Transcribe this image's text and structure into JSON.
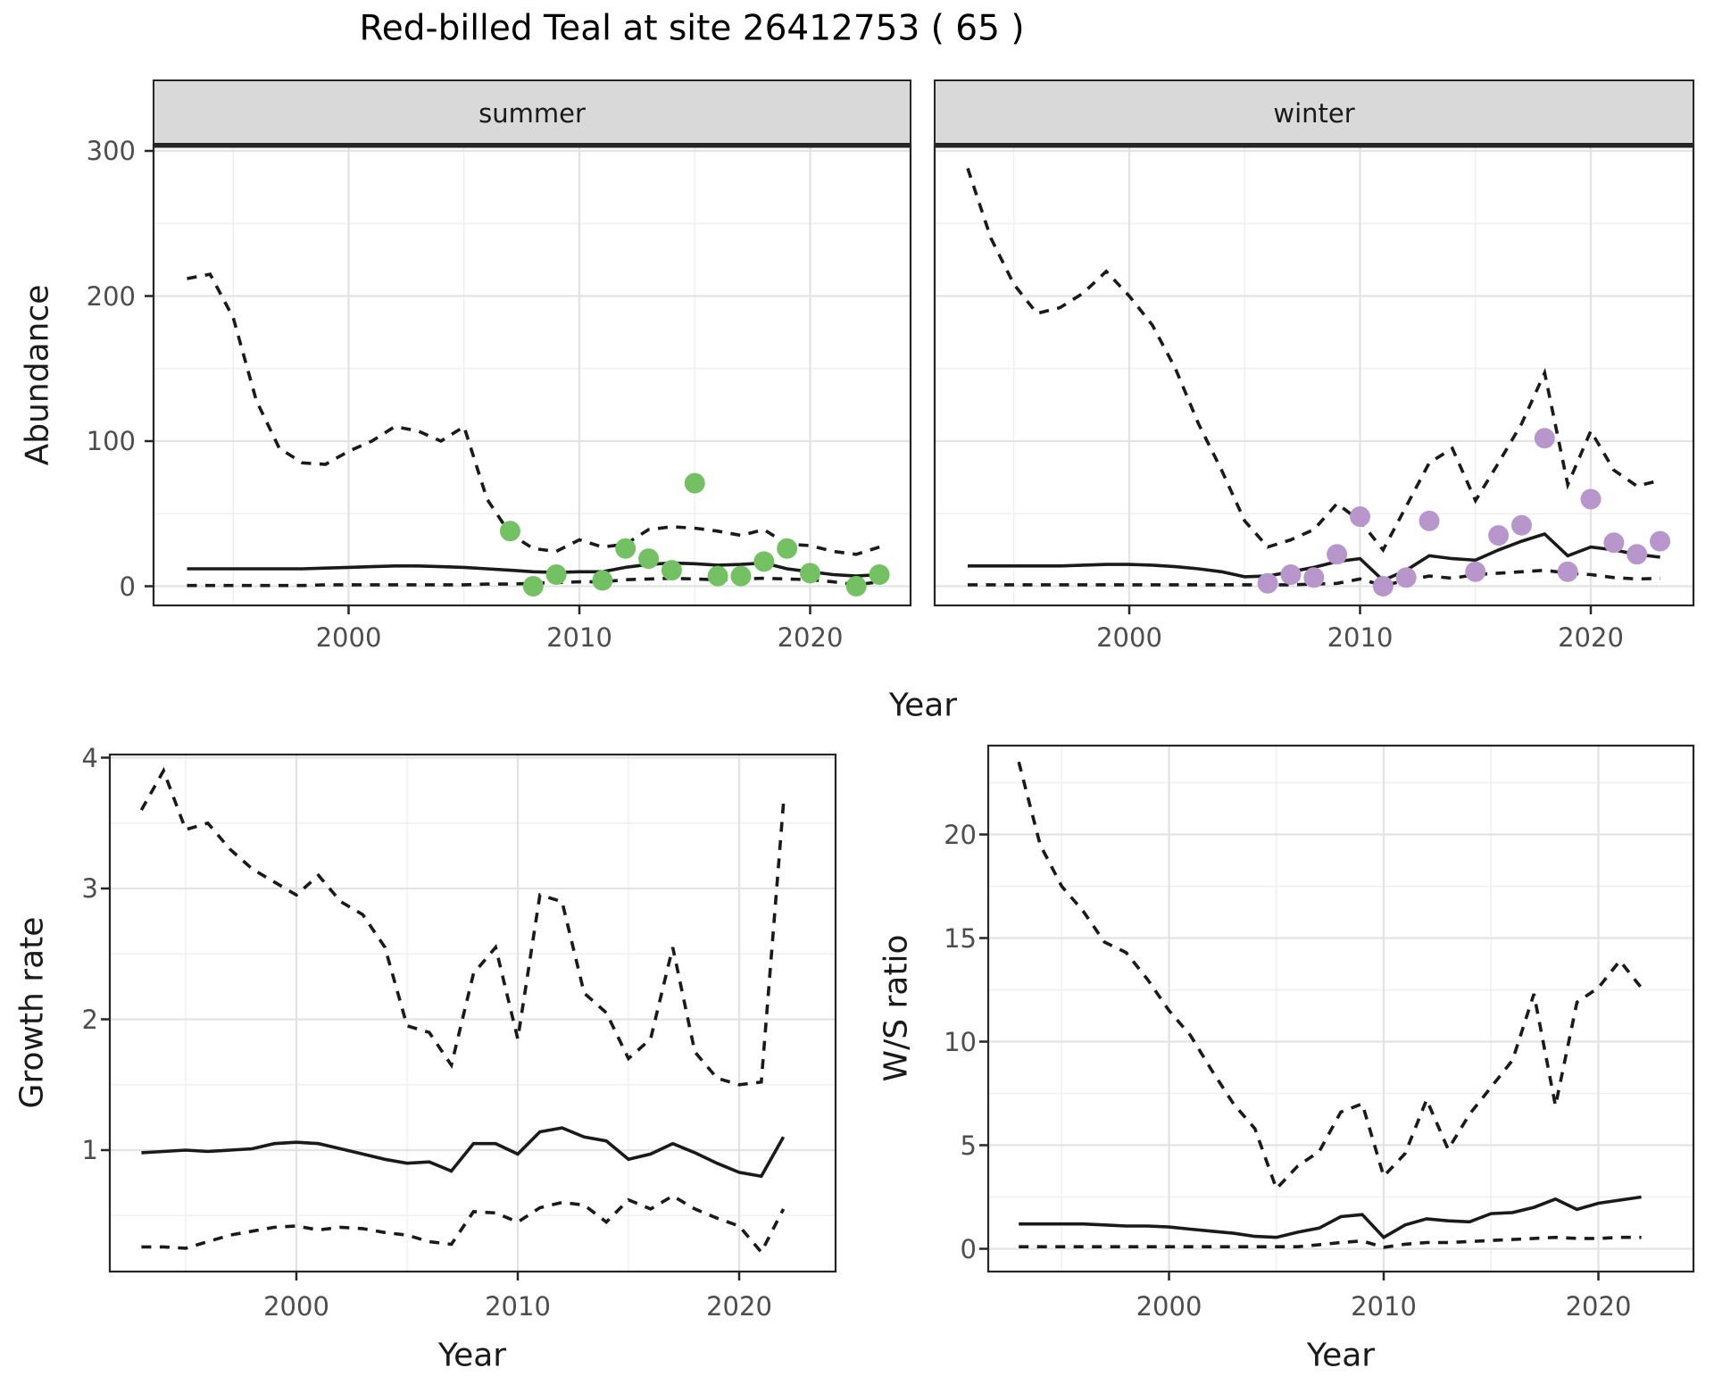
{
  "title": "Red-billed Teal at site 26412753 ( 65 )",
  "colors": {
    "line": "#1a1a1a",
    "summer_points": "#74c164",
    "winter_points": "#b796cc",
    "strip_bg": "#d9d9d9",
    "panel_border": "#262626",
    "grid_major": "#e3e3e3",
    "grid_minor": "#f0f0f0",
    "tick_label": "#4d4d4d"
  },
  "chart_data": [
    {
      "id": "abundance-summer",
      "type": "line",
      "facet_label": "summer",
      "ylabel": "Abundance",
      "xlabel": "Year",
      "x_ticks": [
        2000,
        2010,
        2020
      ],
      "y_ticks": [
        0,
        100,
        200,
        300
      ],
      "xlim": [
        1991.5,
        2024.4
      ],
      "ylim": [
        0,
        304
      ],
      "grid": true,
      "legend": "none",
      "years": [
        1993,
        1994,
        1995,
        1996,
        1997,
        1998,
        1999,
        2000,
        2001,
        2002,
        2003,
        2004,
        2005,
        2006,
        2007,
        2008,
        2009,
        2010,
        2011,
        2012,
        2013,
        2014,
        2015,
        2016,
        2017,
        2018,
        2019,
        2020,
        2021,
        2022,
        2023
      ],
      "series": [
        {
          "name": "upper_95_CI",
          "style": "dashed",
          "values": [
            212,
            215,
            185,
            128,
            95,
            85,
            84,
            93,
            100,
            110,
            107,
            100,
            110,
            60,
            36,
            26,
            24,
            32,
            27,
            29,
            39,
            41,
            40,
            38,
            35,
            39,
            29,
            28,
            24,
            22,
            27
          ]
        },
        {
          "name": "median",
          "style": "solid",
          "values": [
            12,
            12,
            12,
            12,
            12,
            12,
            12.5,
            13,
            13.5,
            14,
            14,
            13.5,
            13,
            12,
            11,
            10,
            9.5,
            10,
            10,
            13,
            15,
            16,
            15.5,
            14.5,
            15,
            16,
            12,
            10,
            8,
            7,
            8
          ]
        },
        {
          "name": "lower_95_CI",
          "style": "dashed",
          "values": [
            0.5,
            0.5,
            0.5,
            0.5,
            0.5,
            0.5,
            1,
            1,
            1,
            1,
            1,
            1,
            1,
            1.5,
            1.5,
            2,
            2.5,
            3,
            3,
            4.5,
            5,
            5.5,
            5,
            4.5,
            5,
            5.5,
            5,
            4.5,
            3,
            1,
            3
          ]
        }
      ],
      "points": {
        "name": "observed_counts",
        "color_key": "summer_points",
        "data": [
          [
            2007,
            38
          ],
          [
            2008,
            0
          ],
          [
            2009,
            8
          ],
          [
            2011,
            4
          ],
          [
            2012,
            26
          ],
          [
            2013,
            19
          ],
          [
            2014,
            11
          ],
          [
            2015,
            71
          ],
          [
            2016,
            7
          ],
          [
            2017,
            7
          ],
          [
            2018,
            17
          ],
          [
            2019,
            26
          ],
          [
            2020,
            9
          ],
          [
            2022,
            0
          ],
          [
            2023,
            8
          ]
        ]
      }
    },
    {
      "id": "abundance-winter",
      "type": "line",
      "facet_label": "winter",
      "ylabel": "Abundance",
      "xlabel": "Year",
      "x_ticks": [
        2000,
        2010,
        2020
      ],
      "y_ticks": [
        0,
        100,
        200,
        300
      ],
      "xlim": [
        1991.5,
        2024.4
      ],
      "ylim": [
        0,
        304
      ],
      "grid": true,
      "legend": "none",
      "years": [
        1993,
        1994,
        1995,
        1996,
        1997,
        1998,
        1999,
        2000,
        2001,
        2002,
        2003,
        2004,
        2005,
        2006,
        2007,
        2008,
        2009,
        2010,
        2011,
        2012,
        2013,
        2014,
        2015,
        2016,
        2017,
        2018,
        2019,
        2020,
        2021,
        2022,
        2023
      ],
      "series": [
        {
          "name": "upper_95_CI",
          "style": "dashed",
          "values": [
            288,
            240,
            208,
            188,
            192,
            202,
            217,
            200,
            180,
            150,
            112,
            80,
            45,
            27,
            32,
            39,
            57,
            45,
            25,
            55,
            85,
            95,
            59,
            85,
            112,
            147,
            70,
            107,
            80,
            69,
            73
          ]
        },
        {
          "name": "median",
          "style": "solid",
          "values": [
            14,
            14,
            14,
            14,
            14,
            14.5,
            15,
            15,
            14.5,
            13.5,
            12,
            10,
            6.5,
            7,
            10,
            13,
            17,
            19,
            4,
            11,
            21,
            19,
            18,
            25,
            31,
            36,
            21,
            27,
            25,
            22,
            20
          ]
        },
        {
          "name": "lower_95_CI",
          "style": "dashed",
          "values": [
            1,
            1,
            1,
            1,
            1,
            1,
            1,
            1,
            1,
            1,
            1,
            1,
            1,
            1,
            1,
            1.5,
            2,
            5,
            0.5,
            4,
            7,
            5.5,
            8,
            9,
            10,
            11,
            9,
            8,
            6,
            5,
            5.5
          ]
        }
      ],
      "points": {
        "name": "observed_counts",
        "color_key": "winter_points",
        "data": [
          [
            2006,
            2
          ],
          [
            2007,
            8
          ],
          [
            2008,
            6
          ],
          [
            2009,
            22
          ],
          [
            2010,
            48
          ],
          [
            2011,
            0
          ],
          [
            2012,
            6
          ],
          [
            2013,
            45
          ],
          [
            2015,
            10
          ],
          [
            2016,
            35
          ],
          [
            2017,
            42
          ],
          [
            2018,
            102
          ],
          [
            2019,
            10
          ],
          [
            2020,
            60
          ],
          [
            2021,
            30
          ],
          [
            2022,
            22
          ],
          [
            2023,
            31
          ]
        ]
      }
    },
    {
      "id": "growth-rate",
      "type": "line",
      "facet_label": "",
      "ylabel": "Growth rate",
      "xlabel": "Year",
      "x_ticks": [
        2000,
        2010,
        2020
      ],
      "y_ticks": [
        1,
        2,
        3,
        4
      ],
      "xlim": [
        1991.6,
        2024.4
      ],
      "ylim": [
        0.07,
        4.02
      ],
      "grid": true,
      "legend": "none",
      "years": [
        1993,
        1994,
        1995,
        1996,
        1997,
        1998,
        1999,
        2000,
        2001,
        2002,
        2003,
        2004,
        2005,
        2006,
        2007,
        2008,
        2009,
        2010,
        2011,
        2012,
        2013,
        2014,
        2015,
        2016,
        2017,
        2018,
        2019,
        2020,
        2021,
        2022
      ],
      "series": [
        {
          "name": "upper_95_CI",
          "style": "dashed",
          "values": [
            3.6,
            3.9,
            3.45,
            3.5,
            3.3,
            3.15,
            3.05,
            2.95,
            3.1,
            2.9,
            2.8,
            2.55,
            1.95,
            1.9,
            1.65,
            2.35,
            2.55,
            1.85,
            2.95,
            2.9,
            2.2,
            2.05,
            1.7,
            1.85,
            2.55,
            1.75,
            1.55,
            1.5,
            1.52,
            3.65
          ]
        },
        {
          "name": "median",
          "style": "solid",
          "values": [
            0.98,
            0.99,
            1.0,
            0.99,
            1.0,
            1.01,
            1.05,
            1.06,
            1.05,
            1.01,
            0.97,
            0.93,
            0.9,
            0.91,
            0.84,
            1.05,
            1.05,
            0.97,
            1.14,
            1.17,
            1.1,
            1.07,
            0.93,
            0.97,
            1.05,
            0.98,
            0.9,
            0.83,
            0.8,
            1.1
          ]
        },
        {
          "name": "lower_95_CI",
          "style": "dashed",
          "values": [
            0.26,
            0.26,
            0.25,
            0.3,
            0.35,
            0.38,
            0.41,
            0.42,
            0.39,
            0.41,
            0.4,
            0.37,
            0.35,
            0.3,
            0.28,
            0.53,
            0.52,
            0.45,
            0.56,
            0.6,
            0.58,
            0.45,
            0.62,
            0.55,
            0.65,
            0.55,
            0.48,
            0.42,
            0.22,
            0.55
          ]
        }
      ],
      "points": null
    },
    {
      "id": "ws-ratio",
      "type": "line",
      "facet_label": "",
      "ylabel": "W/S ratio",
      "xlabel": "Year",
      "x_ticks": [
        2000,
        2010,
        2020
      ],
      "y_ticks": [
        0,
        5,
        10,
        15,
        20
      ],
      "xlim": [
        1991.6,
        2024.4
      ],
      "ylim": [
        -1.1,
        24.3
      ],
      "grid": true,
      "legend": "none",
      "years": [
        1993,
        1994,
        1995,
        1996,
        1997,
        1998,
        1999,
        2000,
        2001,
        2002,
        2003,
        2004,
        2005,
        2006,
        2007,
        2008,
        2009,
        2010,
        2011,
        2012,
        2013,
        2014,
        2015,
        2016,
        2017,
        2018,
        2019,
        2020,
        2021,
        2022
      ],
      "series": [
        {
          "name": "upper_95_CI",
          "style": "dashed",
          "values": [
            23.5,
            19.5,
            17.5,
            16.3,
            14.8,
            14.3,
            13,
            11.5,
            10.3,
            8.6,
            7,
            5.8,
            2.9,
            4,
            4.7,
            6.6,
            7,
            3.5,
            4.6,
            7.2,
            4.8,
            6.5,
            7.8,
            9.1,
            12.3,
            6.9,
            11.9,
            12.6,
            13.9,
            12.6
          ]
        },
        {
          "name": "median",
          "style": "solid",
          "values": [
            1.2,
            1.2,
            1.2,
            1.2,
            1.15,
            1.1,
            1.1,
            1.05,
            0.95,
            0.85,
            0.75,
            0.6,
            0.55,
            0.8,
            1.0,
            1.55,
            1.65,
            0.55,
            1.15,
            1.45,
            1.35,
            1.3,
            1.7,
            1.75,
            2.0,
            2.4,
            1.9,
            2.2,
            2.35,
            2.5
          ]
        },
        {
          "name": "lower_95_CI",
          "style": "dashed",
          "values": [
            0.1,
            0.1,
            0.1,
            0.1,
            0.1,
            0.1,
            0.1,
            0.1,
            0.1,
            0.1,
            0.1,
            0.1,
            0.1,
            0.1,
            0.2,
            0.3,
            0.38,
            0.07,
            0.22,
            0.3,
            0.3,
            0.35,
            0.4,
            0.45,
            0.5,
            0.55,
            0.5,
            0.5,
            0.55,
            0.55
          ]
        }
      ],
      "points": null
    }
  ]
}
